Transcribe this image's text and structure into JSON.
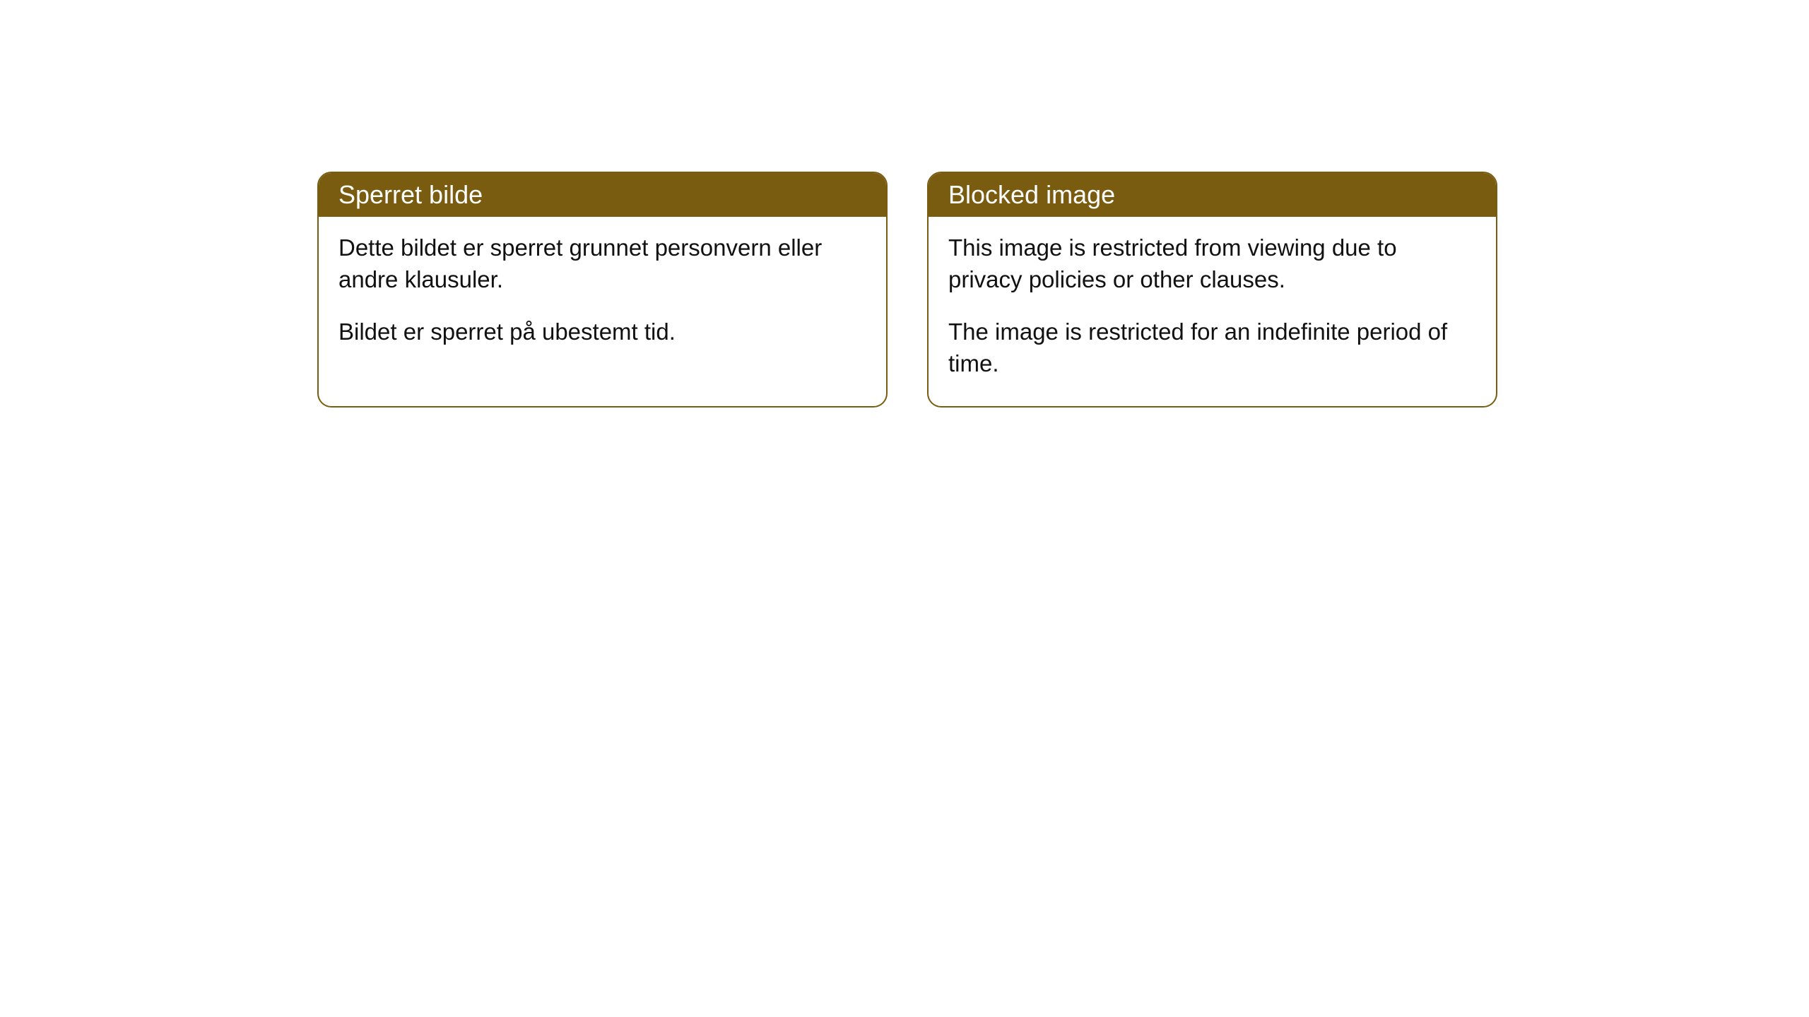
{
  "cards": [
    {
      "title": "Sperret bilde",
      "paragraph1": "Dette bildet er sperret grunnet personvern eller andre klausuler.",
      "paragraph2": "Bildet er sperret på ubestemt tid."
    },
    {
      "title": "Blocked image",
      "paragraph1": "This image is restricted from viewing due to privacy policies or other clauses.",
      "paragraph2": "The image is restricted for an indefinite period of time."
    }
  ],
  "style": {
    "header_bg": "#7a5c10",
    "header_text": "#ffffff",
    "border_color": "#7a5c10",
    "body_bg": "#ffffff",
    "body_text": "#111111",
    "border_radius": 20,
    "title_fontsize": 36,
    "body_fontsize": 33
  }
}
